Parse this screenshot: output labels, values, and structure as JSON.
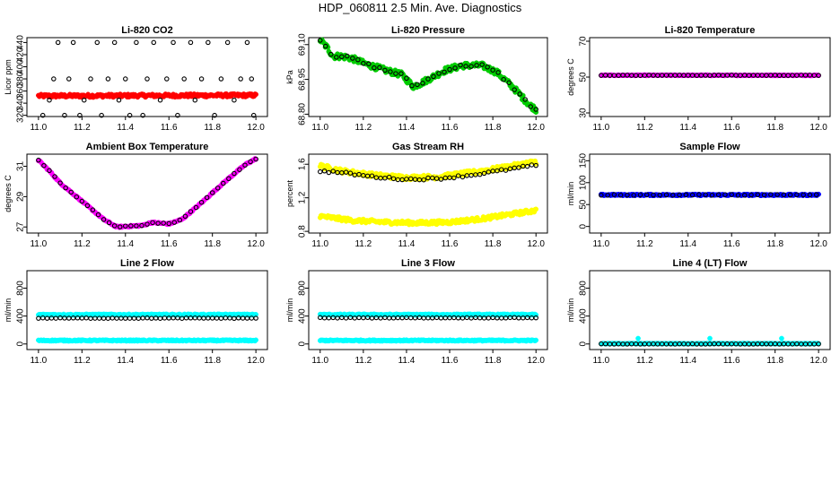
{
  "title": "HDP_060811  2.5 Min. Ave. Diagnostics",
  "colors": {
    "black": "#000000",
    "red": "#ff0000",
    "green": "#00cc00",
    "magenta": "#ff00ff",
    "yellow": "#ffff00",
    "blue": "#0000ff",
    "cyan": "#00ffff"
  },
  "chart_data": [
    {
      "type": "scatter",
      "title": "Li-820 CO2",
      "ylabel": "Licor ppm",
      "xlim": [
        11.0,
        12.0
      ],
      "ylim": [
        318,
        448
      ],
      "xticks": [
        "11.0",
        "11.2",
        "11.4",
        "11.6",
        "11.8",
        "12.0"
      ],
      "yticks": [
        "320",
        "340",
        "360",
        "380",
        "400",
        "420",
        "440"
      ],
      "series": [
        {
          "name": "co2 fill",
          "color": "red",
          "style": "fill",
          "shape": "flat",
          "y0": 352,
          "y1": 353,
          "noise": 2.5
        },
        {
          "name": "co2 points",
          "color": "black",
          "style": "open",
          "scatter": [
            [
              11.02,
              320
            ],
            [
              11.05,
              345
            ],
            [
              11.07,
              380
            ],
            [
              11.09,
              440
            ],
            [
              11.12,
              320
            ],
            [
              11.14,
              380
            ],
            [
              11.16,
              440
            ],
            [
              11.19,
              320
            ],
            [
              11.21,
              345
            ],
            [
              11.24,
              380
            ],
            [
              11.27,
              440
            ],
            [
              11.29,
              320
            ],
            [
              11.32,
              380
            ],
            [
              11.35,
              440
            ],
            [
              11.37,
              345
            ],
            [
              11.4,
              380
            ],
            [
              11.42,
              320
            ],
            [
              11.45,
              440
            ],
            [
              11.48,
              320
            ],
            [
              11.5,
              380
            ],
            [
              11.53,
              440
            ],
            [
              11.56,
              345
            ],
            [
              11.59,
              380
            ],
            [
              11.62,
              440
            ],
            [
              11.64,
              320
            ],
            [
              11.67,
              380
            ],
            [
              11.7,
              440
            ],
            [
              11.72,
              345
            ],
            [
              11.75,
              380
            ],
            [
              11.78,
              440
            ],
            [
              11.81,
              320
            ],
            [
              11.84,
              380
            ],
            [
              11.87,
              440
            ],
            [
              11.9,
              345
            ],
            [
              11.93,
              380
            ],
            [
              11.96,
              440
            ],
            [
              11.99,
              320
            ],
            [
              11.98,
              380
            ]
          ]
        }
      ]
    },
    {
      "type": "scatter",
      "title": "Li-820 Pressure",
      "ylabel": "kPa",
      "xlim": [
        11.0,
        12.0
      ],
      "ylim": [
        68.79,
        69.13
      ],
      "xticks": [
        "11.0",
        "11.2",
        "11.4",
        "11.6",
        "11.8",
        "12.0"
      ],
      "yticks": [
        "68.80",
        "68.95",
        "69.10"
      ],
      "series": [
        {
          "name": "pressure fill",
          "color": "green",
          "style": "fill",
          "shape": "curve",
          "noise": 0.012,
          "knots": [
            [
              11.0,
              69.12
            ],
            [
              11.03,
              69.09
            ],
            [
              11.06,
              69.05
            ],
            [
              11.1,
              69.05
            ],
            [
              11.15,
              69.04
            ],
            [
              11.2,
              69.02
            ],
            [
              11.3,
              68.99
            ],
            [
              11.38,
              68.97
            ],
            [
              11.43,
              68.92
            ],
            [
              11.46,
              68.93
            ],
            [
              11.5,
              68.95
            ],
            [
              11.58,
              68.99
            ],
            [
              11.66,
              69.01
            ],
            [
              11.75,
              69.01
            ],
            [
              11.82,
              68.98
            ],
            [
              11.9,
              68.91
            ],
            [
              11.97,
              68.84
            ],
            [
              12.0,
              68.82
            ]
          ]
        },
        {
          "name": "pressure points",
          "color": "black",
          "style": "open",
          "shape": "curve",
          "noise": 0.006,
          "step": 0.025,
          "knots": [
            [
              11.0,
              69.12
            ],
            [
              11.03,
              69.09
            ],
            [
              11.06,
              69.05
            ],
            [
              11.1,
              69.05
            ],
            [
              11.15,
              69.04
            ],
            [
              11.2,
              69.02
            ],
            [
              11.3,
              68.99
            ],
            [
              11.38,
              68.97
            ],
            [
              11.43,
              68.92
            ],
            [
              11.46,
              68.93
            ],
            [
              11.5,
              68.95
            ],
            [
              11.58,
              68.99
            ],
            [
              11.66,
              69.01
            ],
            [
              11.75,
              69.01
            ],
            [
              11.82,
              68.98
            ],
            [
              11.9,
              68.91
            ],
            [
              11.97,
              68.84
            ],
            [
              12.0,
              68.82
            ]
          ]
        }
      ]
    },
    {
      "type": "scatter",
      "title": "Li-820 Temperature",
      "ylabel": "degrees C",
      "xlim": [
        11.0,
        12.0
      ],
      "ylim": [
        28,
        72
      ],
      "xticks": [
        "11.0",
        "11.2",
        "11.4",
        "11.6",
        "11.8",
        "12.0"
      ],
      "yticks": [
        "30",
        "50",
        "70"
      ],
      "series": [
        {
          "name": "temp fill",
          "color": "magenta",
          "style": "fill",
          "shape": "flat",
          "y0": 51,
          "y1": 51,
          "noise": 0.2
        },
        {
          "name": "temp points",
          "color": "black",
          "style": "open",
          "shape": "flat",
          "y0": 51,
          "y1": 51,
          "noise": 0.1,
          "step": 0.02
        }
      ]
    },
    {
      "type": "scatter",
      "title": "Ambient Box Temperature",
      "ylabel": "degrees C",
      "xlim": [
        11.0,
        12.0
      ],
      "ylim": [
        26.6,
        31.8
      ],
      "xticks": [
        "11.0",
        "11.2",
        "11.4",
        "11.6",
        "11.8",
        "12.0"
      ],
      "yticks": [
        "27",
        "29",
        "31"
      ],
      "series": [
        {
          "name": "ambient fill",
          "color": "magenta",
          "style": "fill",
          "shape": "curve",
          "noise": 0.05,
          "knots": [
            [
              11.0,
              31.4
            ],
            [
              11.05,
              30.7
            ],
            [
              11.1,
              29.9
            ],
            [
              11.2,
              28.7
            ],
            [
              11.3,
              27.5
            ],
            [
              11.36,
              27.0
            ],
            [
              11.42,
              27.05
            ],
            [
              11.48,
              27.1
            ],
            [
              11.52,
              27.3
            ],
            [
              11.6,
              27.2
            ],
            [
              11.66,
              27.5
            ],
            [
              11.75,
              28.6
            ],
            [
              11.85,
              29.9
            ],
            [
              11.95,
              31.1
            ],
            [
              12.0,
              31.5
            ]
          ]
        },
        {
          "name": "ambient points",
          "color": "black",
          "style": "open",
          "shape": "curve",
          "noise": 0.03,
          "step": 0.025,
          "knots": [
            [
              11.0,
              31.4
            ],
            [
              11.05,
              30.7
            ],
            [
              11.1,
              29.9
            ],
            [
              11.2,
              28.7
            ],
            [
              11.3,
              27.5
            ],
            [
              11.36,
              27.0
            ],
            [
              11.42,
              27.05
            ],
            [
              11.48,
              27.1
            ],
            [
              11.52,
              27.3
            ],
            [
              11.6,
              27.2
            ],
            [
              11.66,
              27.5
            ],
            [
              11.75,
              28.6
            ],
            [
              11.85,
              29.9
            ],
            [
              11.95,
              31.1
            ],
            [
              12.0,
              31.5
            ]
          ]
        }
      ]
    },
    {
      "type": "scatter",
      "title": "Gas Stream RH",
      "ylabel": "percent",
      "xlim": [
        11.0,
        12.0
      ],
      "ylim": [
        0.78,
        1.72
      ],
      "xticks": [
        "11.0",
        "11.2",
        "11.4",
        "11.6",
        "11.8",
        "12.0"
      ],
      "yticks": [
        "0.8",
        "1.2",
        "1.6"
      ],
      "series": [
        {
          "name": "rh upper fill",
          "color": "yellow",
          "style": "fill",
          "shape": "curve",
          "noise": 0.025,
          "knots": [
            [
              11.0,
              1.58
            ],
            [
              11.1,
              1.52
            ],
            [
              11.25,
              1.47
            ],
            [
              11.4,
              1.44
            ],
            [
              11.55,
              1.45
            ],
            [
              11.7,
              1.5
            ],
            [
              11.85,
              1.56
            ],
            [
              12.0,
              1.63
            ]
          ]
        },
        {
          "name": "rh lower fill",
          "color": "yellow",
          "style": "fill",
          "shape": "curve",
          "noise": 0.022,
          "knots": [
            [
              11.0,
              0.98
            ],
            [
              11.15,
              0.93
            ],
            [
              11.3,
              0.91
            ],
            [
              11.45,
              0.9
            ],
            [
              11.6,
              0.91
            ],
            [
              11.75,
              0.95
            ],
            [
              11.9,
              1.01
            ],
            [
              12.0,
              1.05
            ]
          ]
        },
        {
          "name": "rh points",
          "color": "black",
          "style": "open",
          "shape": "curve",
          "noise": 0.012,
          "step": 0.02,
          "knots": [
            [
              11.0,
              1.52
            ],
            [
              11.1,
              1.5
            ],
            [
              11.25,
              1.45
            ],
            [
              11.4,
              1.42
            ],
            [
              11.55,
              1.43
            ],
            [
              11.7,
              1.47
            ],
            [
              11.85,
              1.53
            ],
            [
              12.0,
              1.59
            ]
          ]
        }
      ]
    },
    {
      "type": "scatter",
      "title": "Sample Flow",
      "ylabel": "ml/min",
      "xlim": [
        11.0,
        12.0
      ],
      "ylim": [
        -15,
        165
      ],
      "xticks": [
        "11.0",
        "11.2",
        "11.4",
        "11.6",
        "11.8",
        "12.0"
      ],
      "yticks": [
        "0",
        "50",
        "100",
        "150"
      ],
      "series": [
        {
          "name": "sample fill",
          "color": "blue",
          "style": "fill",
          "shape": "flat",
          "y0": 72,
          "y1": 72,
          "noise": 1.5
        },
        {
          "name": "sample points",
          "color": "black",
          "style": "open",
          "shape": "flat",
          "y0": 72,
          "y1": 72,
          "noise": 0.8,
          "step": 0.03
        }
      ]
    },
    {
      "type": "scatter",
      "title": "Line 2 Flow",
      "ylabel": "ml/min",
      "xlim": [
        11.0,
        12.0
      ],
      "ylim": [
        -80,
        1050
      ],
      "xticks": [
        "11.0",
        "11.2",
        "11.4",
        "11.6",
        "11.8",
        "12.0"
      ],
      "yticks": [
        "0",
        "400",
        "800"
      ],
      "series": [
        {
          "name": "line2 upper fill",
          "color": "cyan",
          "style": "fill",
          "shape": "flat",
          "y0": 420,
          "y1": 420,
          "noise": 8
        },
        {
          "name": "line2 lower fill",
          "color": "cyan",
          "style": "fill",
          "shape": "flat",
          "y0": 50,
          "y1": 50,
          "noise": 8
        },
        {
          "name": "line2 points",
          "color": "black",
          "style": "open",
          "shape": "flat",
          "y0": 370,
          "y1": 370,
          "noise": 4,
          "step": 0.02
        }
      ]
    },
    {
      "type": "scatter",
      "title": "Line 3 Flow",
      "ylabel": "ml/min",
      "xlim": [
        11.0,
        12.0
      ],
      "ylim": [
        -80,
        1050
      ],
      "xticks": [
        "11.0",
        "11.2",
        "11.4",
        "11.6",
        "11.8",
        "12.0"
      ],
      "yticks": [
        "0",
        "400",
        "800"
      ],
      "series": [
        {
          "name": "line3 upper fill",
          "color": "cyan",
          "style": "fill",
          "shape": "flat",
          "y0": 420,
          "y1": 420,
          "noise": 8
        },
        {
          "name": "line3 lower fill",
          "color": "cyan",
          "style": "fill",
          "shape": "flat",
          "y0": 50,
          "y1": 50,
          "noise": 8
        },
        {
          "name": "line3 points",
          "color": "black",
          "style": "open",
          "shape": "flat",
          "y0": 375,
          "y1": 375,
          "noise": 4,
          "step": 0.02
        }
      ]
    },
    {
      "type": "scatter",
      "title": "Line 4 (LT) Flow",
      "ylabel": "ml/min",
      "xlim": [
        11.0,
        12.0
      ],
      "ylim": [
        -80,
        1050
      ],
      "xticks": [
        "11.0",
        "11.2",
        "11.4",
        "11.6",
        "11.8",
        "12.0"
      ],
      "yticks": [
        "0",
        "400",
        "800"
      ],
      "series": [
        {
          "name": "line4 fill",
          "color": "cyan",
          "style": "fill",
          "shape": "flat",
          "y0": 5,
          "y1": 5,
          "noise": 4
        },
        {
          "name": "line4 spikes",
          "color": "cyan",
          "style": "fill",
          "scatter": [
            [
              11.17,
              80
            ],
            [
              11.5,
              80
            ],
            [
              11.83,
              80
            ]
          ]
        },
        {
          "name": "line4 points",
          "color": "black",
          "style": "open",
          "shape": "flat",
          "y0": 0,
          "y1": 0,
          "noise": 2,
          "step": 0.02
        }
      ]
    }
  ]
}
